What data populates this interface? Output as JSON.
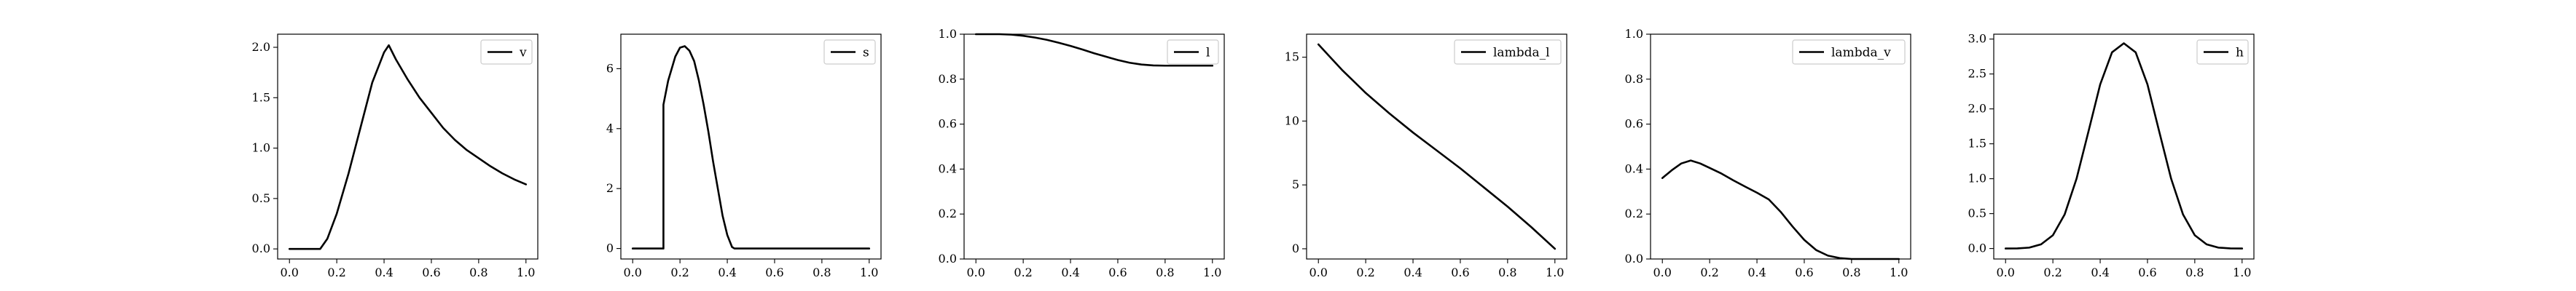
{
  "chart_data": [
    {
      "type": "line",
      "legend_placement": "upper right",
      "grid": false,
      "xlim": [
        -0.05,
        1.05
      ],
      "ylim": [
        -0.1,
        2.13
      ],
      "xticks": [
        0.0,
        0.2,
        0.4,
        0.6,
        0.8,
        1.0
      ],
      "xtick_labels": [
        "0.0",
        "0.2",
        "0.4",
        "0.6",
        "0.8",
        "1.0"
      ],
      "yticks": [
        0.0,
        0.5,
        1.0,
        1.5,
        2.0
      ],
      "ytick_labels": [
        "0.0",
        "0.5",
        "1.0",
        "1.5",
        "2.0"
      ],
      "series": [
        {
          "name": "v",
          "x": [
            0.0,
            0.05,
            0.1,
            0.13,
            0.16,
            0.2,
            0.25,
            0.3,
            0.35,
            0.4,
            0.42,
            0.45,
            0.5,
            0.55,
            0.6,
            0.65,
            0.7,
            0.75,
            0.8,
            0.85,
            0.9,
            0.95,
            1.0
          ],
          "y": [
            0.0,
            0.0,
            0.0,
            0.0,
            0.1,
            0.35,
            0.75,
            1.2,
            1.65,
            1.95,
            2.02,
            1.88,
            1.68,
            1.5,
            1.35,
            1.2,
            1.08,
            0.98,
            0.9,
            0.82,
            0.75,
            0.69,
            0.64
          ]
        }
      ]
    },
    {
      "type": "line",
      "legend_placement": "upper right",
      "grid": false,
      "xlim": [
        -0.05,
        1.05
      ],
      "ylim": [
        -0.35,
        7.15
      ],
      "xticks": [
        0.0,
        0.2,
        0.4,
        0.6,
        0.8,
        1.0
      ],
      "xtick_labels": [
        "0.0",
        "0.2",
        "0.4",
        "0.6",
        "0.8",
        "1.0"
      ],
      "yticks": [
        0,
        2,
        4,
        6
      ],
      "ytick_labels": [
        "0",
        "2",
        "4",
        "6"
      ],
      "series": [
        {
          "name": "s",
          "x": [
            0.0,
            0.05,
            0.1,
            0.13,
            0.13,
            0.15,
            0.18,
            0.2,
            0.22,
            0.24,
            0.26,
            0.28,
            0.3,
            0.32,
            0.34,
            0.36,
            0.38,
            0.4,
            0.42,
            0.43,
            0.45,
            0.5,
            0.6,
            0.7,
            0.8,
            0.9,
            1.0
          ],
          "y": [
            0.0,
            0.0,
            0.0,
            0.0,
            4.8,
            5.6,
            6.4,
            6.7,
            6.75,
            6.6,
            6.25,
            5.6,
            4.8,
            3.9,
            2.9,
            2.0,
            1.1,
            0.45,
            0.05,
            0.0,
            0.0,
            0.0,
            0.0,
            0.0,
            0.0,
            0.0,
            0.0
          ]
        }
      ]
    },
    {
      "type": "line",
      "legend_placement": "upper right",
      "grid": false,
      "xlim": [
        -0.05,
        1.05
      ],
      "ylim": [
        0.0,
        1.0
      ],
      "xticks": [
        0.0,
        0.2,
        0.4,
        0.6,
        0.8,
        1.0
      ],
      "xtick_labels": [
        "0.0",
        "0.2",
        "0.4",
        "0.6",
        "0.8",
        "1.0"
      ],
      "yticks": [
        0.0,
        0.2,
        0.4,
        0.6,
        0.8,
        1.0
      ],
      "ytick_labels": [
        "0.0",
        "0.2",
        "0.4",
        "0.6",
        "0.8",
        "1.0"
      ],
      "series": [
        {
          "name": "l",
          "x": [
            0.0,
            0.1,
            0.15,
            0.2,
            0.25,
            0.3,
            0.35,
            0.4,
            0.45,
            0.5,
            0.55,
            0.6,
            0.65,
            0.7,
            0.75,
            0.8,
            0.85,
            0.9,
            0.95,
            1.0
          ],
          "y": [
            1.0,
            1.0,
            0.998,
            0.993,
            0.985,
            0.975,
            0.962,
            0.948,
            0.932,
            0.915,
            0.9,
            0.885,
            0.873,
            0.865,
            0.861,
            0.86,
            0.86,
            0.86,
            0.86,
            0.86
          ]
        }
      ]
    },
    {
      "type": "line",
      "legend_placement": "upper right",
      "grid": false,
      "xlim": [
        -0.05,
        1.05
      ],
      "ylim": [
        -0.8,
        16.8
      ],
      "xticks": [
        0.0,
        0.2,
        0.4,
        0.6,
        0.8,
        1.0
      ],
      "xtick_labels": [
        "0.0",
        "0.2",
        "0.4",
        "0.6",
        "0.8",
        "1.0"
      ],
      "yticks": [
        0,
        5,
        10,
        15
      ],
      "ytick_labels": [
        "0",
        "5",
        "10",
        "15"
      ],
      "series": [
        {
          "name": "lambda_l",
          "x": [
            0.0,
            0.05,
            0.1,
            0.15,
            0.2,
            0.3,
            0.4,
            0.5,
            0.6,
            0.7,
            0.8,
            0.9,
            1.0
          ],
          "y": [
            16.0,
            15.0,
            14.0,
            13.1,
            12.2,
            10.6,
            9.1,
            7.7,
            6.3,
            4.8,
            3.3,
            1.7,
            0.0
          ]
        }
      ]
    },
    {
      "type": "line",
      "legend_placement": "upper right",
      "grid": false,
      "xlim": [
        -0.05,
        1.05
      ],
      "ylim": [
        0.0,
        1.0
      ],
      "xticks": [
        0.0,
        0.2,
        0.4,
        0.6,
        0.8,
        1.0
      ],
      "xtick_labels": [
        "0.0",
        "0.2",
        "0.4",
        "0.6",
        "0.8",
        "1.0"
      ],
      "yticks": [
        0.0,
        0.2,
        0.4,
        0.6,
        0.8,
        1.0
      ],
      "ytick_labels": [
        "0.0",
        "0.2",
        "0.4",
        "0.6",
        "0.8",
        "1.0"
      ],
      "series": [
        {
          "name": "lambda_v",
          "x": [
            0.0,
            0.04,
            0.08,
            0.12,
            0.16,
            0.2,
            0.25,
            0.3,
            0.35,
            0.4,
            0.45,
            0.5,
            0.55,
            0.6,
            0.65,
            0.7,
            0.75,
            0.8,
            0.85,
            0.9,
            1.0
          ],
          "y": [
            0.36,
            0.395,
            0.425,
            0.438,
            0.425,
            0.405,
            0.38,
            0.35,
            0.322,
            0.295,
            0.265,
            0.21,
            0.145,
            0.085,
            0.04,
            0.015,
            0.004,
            0.0,
            0.0,
            0.0,
            0.0
          ]
        }
      ]
    },
    {
      "type": "line",
      "legend_placement": "upper right",
      "grid": false,
      "xlim": [
        -0.05,
        1.05
      ],
      "ylim": [
        -0.15,
        3.07
      ],
      "xticks": [
        0.0,
        0.2,
        0.4,
        0.6,
        0.8,
        1.0
      ],
      "xtick_labels": [
        "0.0",
        "0.2",
        "0.4",
        "0.6",
        "0.8",
        "1.0"
      ],
      "yticks": [
        0.0,
        0.5,
        1.0,
        1.5,
        2.0,
        2.5,
        3.0
      ],
      "ytick_labels": [
        "0.0",
        "0.5",
        "1.0",
        "1.5",
        "2.0",
        "2.5",
        "3.0"
      ],
      "series": [
        {
          "name": "h",
          "x": [
            0.0,
            0.05,
            0.1,
            0.15,
            0.2,
            0.25,
            0.3,
            0.35,
            0.4,
            0.45,
            0.5,
            0.55,
            0.6,
            0.65,
            0.7,
            0.75,
            0.8,
            0.85,
            0.9,
            0.95,
            1.0
          ],
          "y": [
            0.0,
            0.002,
            0.013,
            0.06,
            0.19,
            0.49,
            1.0,
            1.67,
            2.35,
            2.81,
            2.94,
            2.81,
            2.35,
            1.67,
            1.0,
            0.49,
            0.19,
            0.06,
            0.013,
            0.002,
            0.0
          ]
        }
      ]
    }
  ]
}
